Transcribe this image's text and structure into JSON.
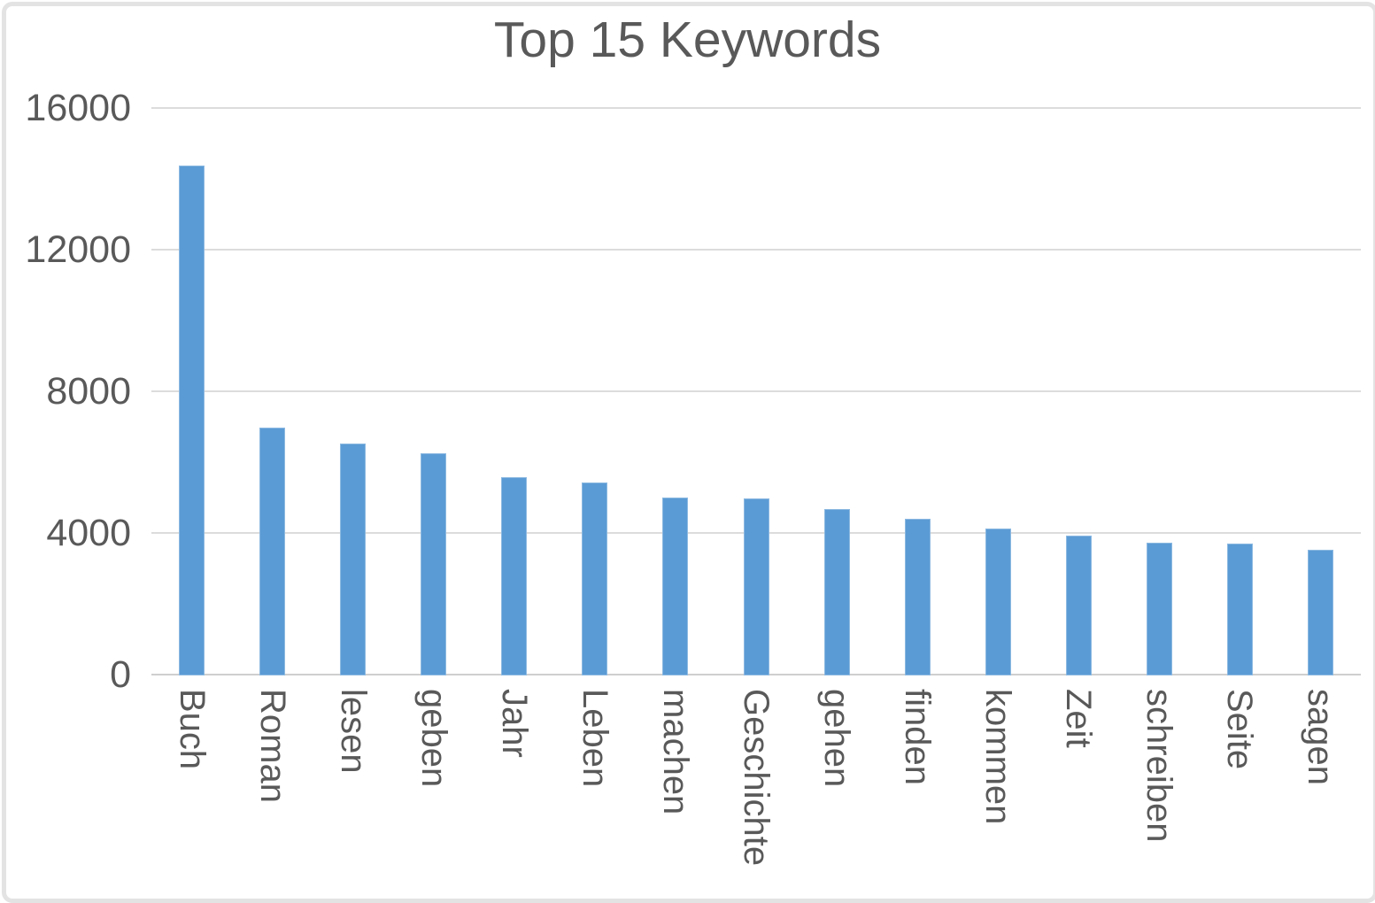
{
  "chart_data": {
    "type": "bar",
    "title": "Top 15 Keywords",
    "categories": [
      "Buch",
      "Roman",
      "lesen",
      "geben",
      "Jahr",
      "Leben",
      "machen",
      "Geschichte",
      "gehen",
      "finden",
      "kommen",
      "Zeit",
      "schreiben",
      "Seite",
      "sagen"
    ],
    "values": [
      14400,
      7000,
      6550,
      6280,
      5600,
      5450,
      5030,
      5000,
      4700,
      4430,
      4150,
      3950,
      3760,
      3730,
      3550
    ],
    "xlabel": "",
    "ylabel": "",
    "ylim": [
      0,
      16000
    ],
    "yticks": [
      0,
      4000,
      8000,
      12000,
      16000
    ],
    "ytick_labels": [
      "0",
      "4000",
      "8000",
      "12000",
      "16000"
    ],
    "x_tick_rotation_degrees": 90,
    "grid": "horizontal-gridlines",
    "legend_position": "none",
    "bar_color": "#5b9bd5",
    "text_color": "#595959",
    "gridline_color": "#dcdcdc",
    "axis_line_color": "#cfcfcf",
    "background_color": "#ffffff",
    "frame_border_color": "#e3e3e3"
  }
}
